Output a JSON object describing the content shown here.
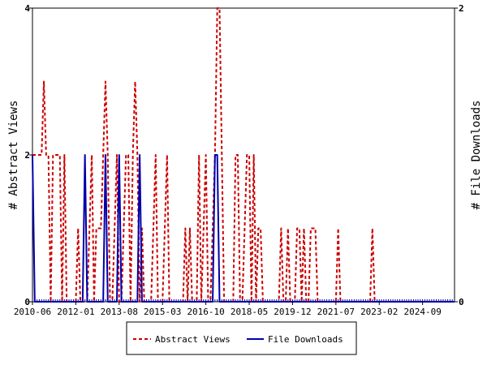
{
  "chart_data": {
    "type": "line",
    "x_tick_labels": [
      "2010-06",
      "2012-01",
      "2013-08",
      "2015-03",
      "2016-10",
      "2018-05",
      "2019-12",
      "2021-07",
      "2023-02",
      "2024-09"
    ],
    "x_tick_values": [
      0,
      19,
      38,
      57,
      76,
      95,
      114,
      133,
      152,
      171
    ],
    "xlim": [
      0,
      185
    ],
    "y_left": {
      "label": "# Abstract Views",
      "ticks": [
        "0",
        "2",
        "4"
      ],
      "range": [
        0,
        4
      ]
    },
    "y_right": {
      "label": "# File Downloads",
      "ticks": [
        "0",
        "2"
      ],
      "range": [
        0,
        2
      ]
    },
    "legend_position": "bottom",
    "series": [
      {
        "name": "Abstract Views",
        "axis": "left",
        "color": "#cc0000",
        "style": "dashed",
        "values": [
          2,
          2,
          2,
          2,
          2,
          3,
          2,
          2,
          0,
          2,
          2,
          2,
          2,
          0,
          2,
          0,
          0,
          0,
          0,
          0,
          1,
          0,
          0,
          0,
          0,
          1,
          2,
          0,
          1,
          1,
          1,
          2,
          3,
          2,
          0,
          0,
          1,
          2,
          0,
          0,
          1,
          2,
          2,
          0,
          2,
          3,
          2,
          0,
          1,
          0,
          0,
          0,
          0,
          1,
          2,
          0,
          0,
          0,
          1,
          2,
          0,
          0,
          0,
          0,
          0,
          0,
          0,
          1,
          0,
          1,
          0,
          0,
          0,
          2,
          0,
          1,
          2,
          0,
          0,
          1,
          2,
          4,
          4,
          2,
          0,
          0,
          0,
          0,
          0,
          2,
          2,
          0,
          0,
          1,
          2,
          2,
          0,
          2,
          0,
          1,
          1,
          0,
          0,
          0,
          0,
          0,
          0,
          0,
          0,
          1,
          0,
          0,
          1,
          0,
          0,
          0,
          1,
          1,
          0,
          1,
          0,
          0,
          1,
          1,
          1,
          0,
          0,
          0,
          0,
          0,
          0,
          0,
          0,
          0,
          1,
          0,
          0,
          0,
          0,
          0,
          0,
          0,
          0,
          0,
          0,
          0,
          0,
          0,
          0,
          1,
          0,
          0,
          0,
          0,
          0,
          0,
          0,
          0,
          0,
          0,
          0,
          0,
          0,
          0,
          0,
          0,
          0,
          0,
          0,
          0,
          0,
          0,
          0,
          0,
          0,
          0,
          0,
          0,
          0,
          0,
          0,
          0,
          0,
          0,
          0,
          0
        ]
      },
      {
        "name": "File Downloads",
        "axis": "right",
        "color": "#0000aa",
        "style": "solid",
        "values": [
          1,
          0,
          0,
          0,
          0,
          0,
          0,
          0,
          0,
          0,
          0,
          0,
          0,
          0,
          0,
          0,
          0,
          0,
          0,
          0,
          0,
          0,
          0,
          1,
          0,
          0,
          0,
          0,
          0,
          0,
          0,
          0,
          1,
          0,
          0,
          0,
          0,
          0,
          1,
          0,
          0,
          0,
          0,
          0,
          0,
          0,
          0,
          1,
          0,
          0,
          0,
          0,
          0,
          0,
          0,
          0,
          0,
          0,
          0,
          0,
          0,
          0,
          0,
          0,
          0,
          0,
          0,
          0,
          0,
          0,
          0,
          0,
          0,
          0,
          0,
          0,
          0,
          0,
          0,
          0,
          1,
          1,
          0,
          0,
          0,
          0,
          0,
          0,
          0,
          0,
          0,
          0,
          0,
          0,
          0,
          0,
          0,
          0,
          0,
          0,
          0,
          0,
          0,
          0,
          0,
          0,
          0,
          0,
          0,
          0,
          0,
          0,
          0,
          0,
          0,
          0,
          0,
          0,
          0,
          0,
          0,
          0,
          0,
          0,
          0,
          0,
          0,
          0,
          0,
          0,
          0,
          0,
          0,
          0,
          0,
          0,
          0,
          0,
          0,
          0,
          0,
          0,
          0,
          0,
          0,
          0,
          0,
          0,
          0,
          0,
          0,
          0,
          0,
          0,
          0,
          0,
          0,
          0,
          0,
          0,
          0,
          0,
          0,
          0,
          0,
          0,
          0,
          0,
          0,
          0,
          0,
          0,
          0,
          0,
          0,
          0,
          0,
          0,
          0,
          0,
          0,
          0,
          0,
          0,
          0,
          0
        ]
      }
    ]
  }
}
